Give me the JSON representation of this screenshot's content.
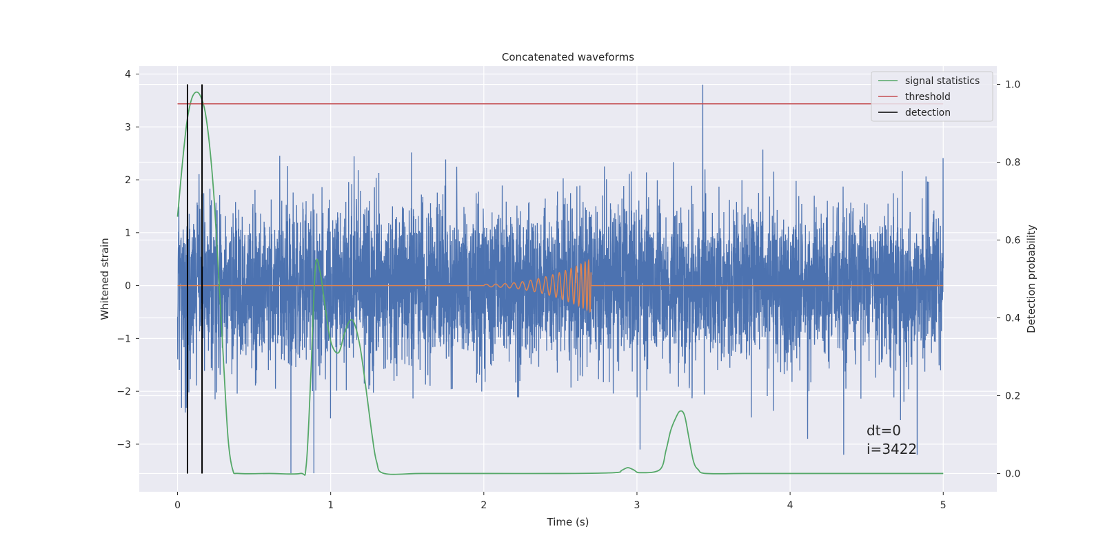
{
  "chart_data": {
    "type": "line",
    "title": "Concatenated waveforms",
    "xlabel": "Time (s)",
    "ylabel": "Whitened strain",
    "y2label": "Detection probability",
    "xlim": [
      -0.25,
      5.35
    ],
    "ylim": [
      -3.9,
      4.15
    ],
    "y2lim": [
      -0.047,
      1.047
    ],
    "xticks": [
      0,
      1,
      2,
      3,
      4,
      5
    ],
    "yticks": [
      -3,
      -2,
      -1,
      0,
      1,
      2,
      3,
      4
    ],
    "y2ticks": [
      0.0,
      0.2,
      0.4,
      0.6,
      0.8,
      1.0
    ],
    "xtick_labels": [
      "0",
      "1",
      "2",
      "3",
      "4",
      "5"
    ],
    "ytick_labels": [
      "−3",
      "−2",
      "−1",
      "0",
      "1",
      "2",
      "3",
      "4"
    ],
    "y2tick_labels": [
      "0.0",
      "0.2",
      "0.4",
      "0.6",
      "0.8",
      "1.0"
    ],
    "grid": true,
    "legend_position": "top-right",
    "colors": {
      "noise": "#4c72b0",
      "injection": "#dd8452",
      "signal_statistics": "#55a868",
      "threshold": "#c44e52",
      "detection": "#000000",
      "plot_background": "#eaeaf2",
      "grid": "#ffffff"
    },
    "noise": {
      "x_range": [
        0,
        5
      ],
      "std": 0.75,
      "notable_peaks": [
        [
          0.05,
          -2.4
        ],
        [
          0.74,
          -3.55
        ],
        [
          0.89,
          -3.55
        ],
        [
          3.02,
          -3.1
        ],
        [
          3.43,
          3.8
        ],
        [
          4.35,
          -3.2
        ],
        [
          4.83,
          -3.2
        ]
      ]
    },
    "injection": {
      "x_range": [
        2.0,
        2.7
      ],
      "peak_amplitude": 0.5,
      "y_axis": "left"
    },
    "series": [
      {
        "name": "signal statistics",
        "axis": "right",
        "x": [
          0.0,
          0.03,
          0.06,
          0.09,
          0.12,
          0.15,
          0.18,
          0.21,
          0.24,
          0.27,
          0.3,
          0.33,
          0.36,
          0.4,
          0.6,
          0.8,
          0.84,
          0.87,
          0.9,
          0.93,
          0.96,
          1.0,
          1.05,
          1.09,
          1.12,
          1.15,
          1.19,
          1.23,
          1.27,
          1.3,
          1.35,
          1.6,
          2.0,
          2.5,
          2.85,
          2.9,
          2.94,
          2.98,
          3.02,
          3.15,
          3.19,
          3.22,
          3.25,
          3.28,
          3.31,
          3.34,
          3.37,
          3.4,
          3.45,
          3.7,
          4.0,
          4.5,
          5.0
        ],
        "y": [
          0.66,
          0.79,
          0.9,
          0.96,
          0.98,
          0.97,
          0.93,
          0.84,
          0.7,
          0.5,
          0.29,
          0.09,
          0.01,
          0.0,
          0.0,
          0.0,
          0.02,
          0.25,
          0.53,
          0.52,
          0.44,
          0.34,
          0.31,
          0.36,
          0.39,
          0.39,
          0.33,
          0.22,
          0.1,
          0.03,
          0.0,
          0.0,
          0.0,
          0.0,
          0.002,
          0.008,
          0.015,
          0.009,
          0.002,
          0.01,
          0.06,
          0.11,
          0.14,
          0.16,
          0.15,
          0.09,
          0.03,
          0.01,
          0.0,
          0.0,
          0.0,
          0.0,
          0.0
        ]
      },
      {
        "name": "threshold",
        "axis": "right",
        "x": [
          0.0,
          5.0
        ],
        "y": [
          0.95,
          0.95
        ]
      },
      {
        "name": "detection",
        "axis": "right",
        "x": [
          0.065,
          0.16
        ],
        "y_range": [
          0.0,
          1.0
        ]
      }
    ],
    "annotations": [
      "dt=0",
      "i=3422"
    ]
  }
}
